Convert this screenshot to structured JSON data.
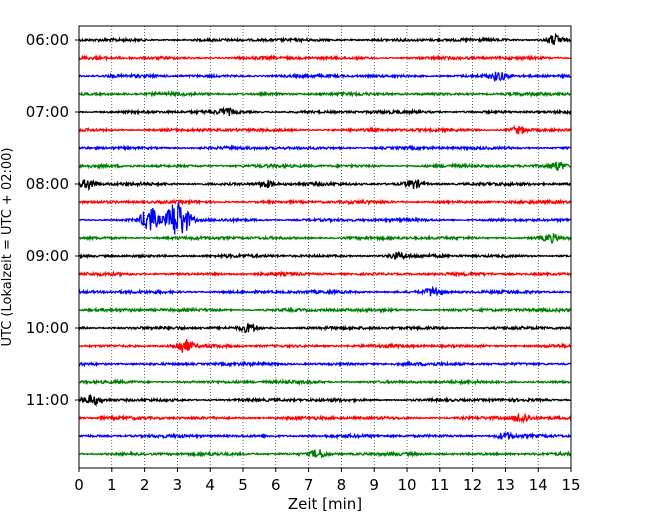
{
  "chart_data": {
    "type": "line",
    "title": "",
    "xlabel": "Zeit  [min]",
    "ylabel": "UTC (Lokalzeit = UTC + 02:00)",
    "xlim": [
      0,
      15
    ],
    "x_ticks": [
      "0",
      "1",
      "2",
      "3",
      "4",
      "5",
      "6",
      "7",
      "8",
      "9",
      "10",
      "11",
      "12",
      "13",
      "14",
      "15"
    ],
    "y_ticks": [
      "06:00",
      "07:00",
      "08:00",
      "09:00",
      "10:00",
      "11:00"
    ],
    "grid": "vertical dotted lines at each minute",
    "legend": "none",
    "colors": {
      "trace_cycle": [
        "#000000",
        "#ff0000",
        "#0000ff",
        "#008000"
      ]
    },
    "trace_interval_minutes": 15,
    "series": [
      {
        "start": "06:00",
        "color": "#000000",
        "events": [
          {
            "x": 14.5,
            "amp": 0.35
          }
        ]
      },
      {
        "start": "06:15",
        "color": "#ff0000",
        "events": []
      },
      {
        "start": "06:30",
        "color": "#0000ff",
        "events": [
          {
            "x": 12.8,
            "amp": 0.25
          }
        ]
      },
      {
        "start": "06:45",
        "color": "#008000",
        "events": []
      },
      {
        "start": "07:00",
        "color": "#000000",
        "events": [
          {
            "x": 4.5,
            "amp": 0.2
          }
        ]
      },
      {
        "start": "07:15",
        "color": "#ff0000",
        "events": [
          {
            "x": 13.4,
            "amp": 0.25
          }
        ]
      },
      {
        "start": "07:30",
        "color": "#0000ff",
        "events": []
      },
      {
        "start": "07:45",
        "color": "#008000",
        "events": [
          {
            "x": 14.6,
            "amp": 0.3
          }
        ]
      },
      {
        "start": "08:00",
        "color": "#000000",
        "events": [
          {
            "x": 0.3,
            "amp": 0.35
          },
          {
            "x": 5.7,
            "amp": 0.25
          },
          {
            "x": 10.2,
            "amp": 0.3
          }
        ]
      },
      {
        "start": "08:15",
        "color": "#ff0000",
        "events": []
      },
      {
        "start": "08:30",
        "color": "#0000ff",
        "events": [
          {
            "x": 2.15,
            "amp": 0.9
          },
          {
            "x": 2.9,
            "amp": 1.1
          },
          {
            "x": 3.2,
            "amp": 0.7
          }
        ]
      },
      {
        "start": "08:45",
        "color": "#008000",
        "events": [
          {
            "x": 14.4,
            "amp": 0.25
          }
        ]
      },
      {
        "start": "09:00",
        "color": "#000000",
        "events": [
          {
            "x": 9.7,
            "amp": 0.2
          }
        ]
      },
      {
        "start": "09:15",
        "color": "#ff0000",
        "events": []
      },
      {
        "start": "09:30",
        "color": "#0000ff",
        "events": [
          {
            "x": 10.8,
            "amp": 0.3
          }
        ]
      },
      {
        "start": "09:45",
        "color": "#008000",
        "events": []
      },
      {
        "start": "10:00",
        "color": "#000000",
        "events": [
          {
            "x": 5.2,
            "amp": 0.3
          }
        ]
      },
      {
        "start": "10:15",
        "color": "#ff0000",
        "events": [
          {
            "x": 3.2,
            "amp": 0.45
          }
        ]
      },
      {
        "start": "10:30",
        "color": "#0000ff",
        "events": []
      },
      {
        "start": "10:45",
        "color": "#008000",
        "events": []
      },
      {
        "start": "11:00",
        "color": "#000000",
        "events": [
          {
            "x": 0.4,
            "amp": 0.3
          }
        ]
      },
      {
        "start": "11:15",
        "color": "#ff0000",
        "events": [
          {
            "x": 13.5,
            "amp": 0.3
          }
        ]
      },
      {
        "start": "11:30",
        "color": "#0000ff",
        "events": [
          {
            "x": 13.0,
            "amp": 0.2
          }
        ]
      },
      {
        "start": "11:45",
        "color": "#008000",
        "events": [
          {
            "x": 7.3,
            "amp": 0.3
          }
        ]
      }
    ]
  }
}
